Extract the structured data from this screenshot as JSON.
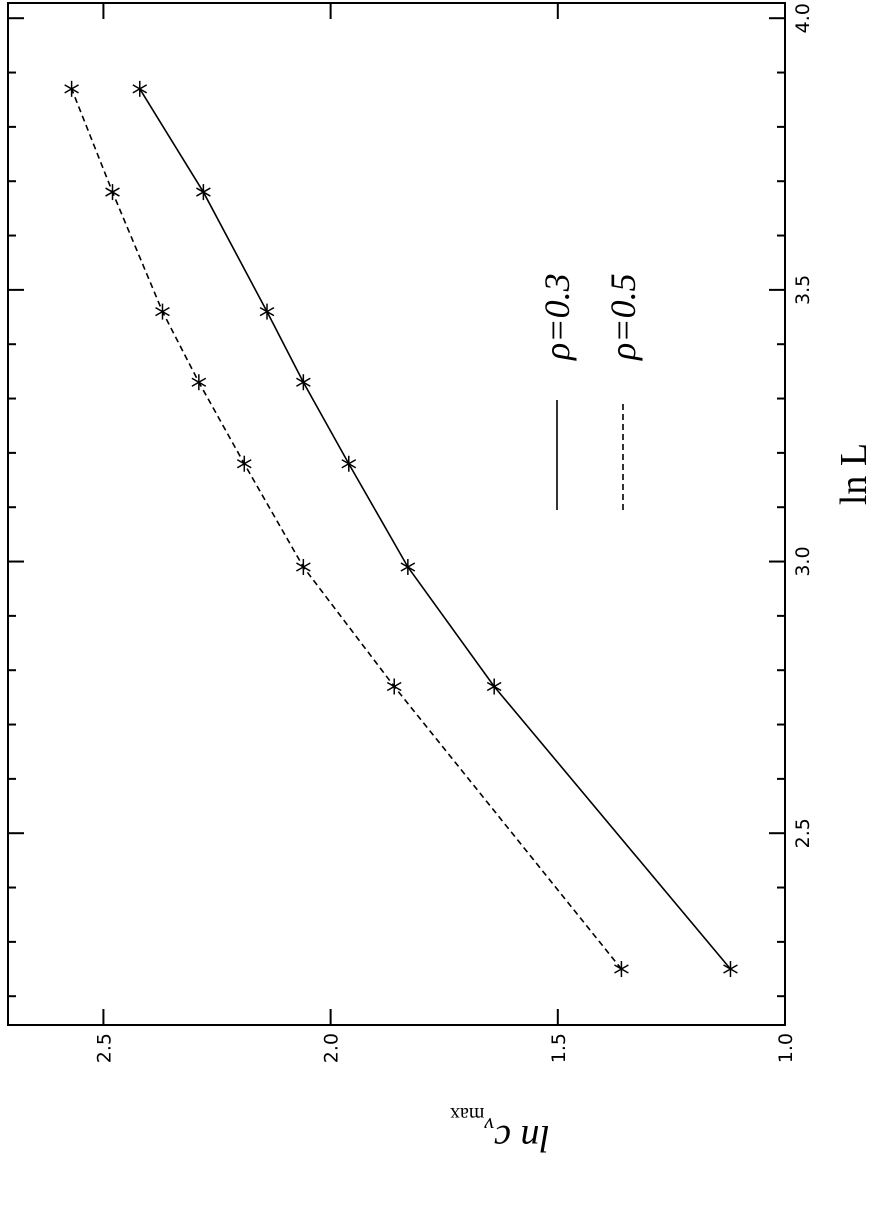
{
  "chart_data": {
    "type": "line",
    "xlabel": "ln L",
    "ylabel": "ln c",
    "ylabel_subscript": "v",
    "ylabel_subsubscript": "max",
    "xlim": [
      2.147,
      4.028
    ],
    "ylim": [
      1.0,
      2.71
    ],
    "xticks": [
      2.5,
      {
        "value": 3,
        "label": "3.0"
      },
      3.5,
      {
        "value": 4,
        "label": "4.0"
      }
    ],
    "x_minor_ticks": [
      2.2,
      2.3,
      2.4,
      2.6,
      2.7,
      2.8,
      2.9,
      3.1,
      3.2,
      3.3,
      3.4,
      3.6,
      3.7,
      3.8,
      3.9
    ],
    "yticks": [
      {
        "value": 1,
        "label": "1.0"
      },
      1.5,
      {
        "value": 2,
        "label": "2.0"
      },
      2.5
    ],
    "legend": "right",
    "series": [
      {
        "name": "ρ=0.3",
        "color": "#000000",
        "linestyle": "solid",
        "x": [
          2.25,
          2.77,
          2.99,
          3.18,
          3.33,
          3.46,
          3.68,
          3.87
        ],
        "values": [
          1.12,
          1.64,
          1.83,
          1.96,
          2.06,
          2.14,
          2.28,
          2.42
        ]
      },
      {
        "name": "ρ=0.5",
        "color": "#000000",
        "linestyle": "dashed",
        "x": [
          2.25,
          2.77,
          2.99,
          3.18,
          3.33,
          3.46,
          3.68,
          3.87
        ],
        "values": [
          1.36,
          1.86,
          2.06,
          2.19,
          2.29,
          2.37,
          2.48,
          2.57
        ]
      }
    ]
  }
}
